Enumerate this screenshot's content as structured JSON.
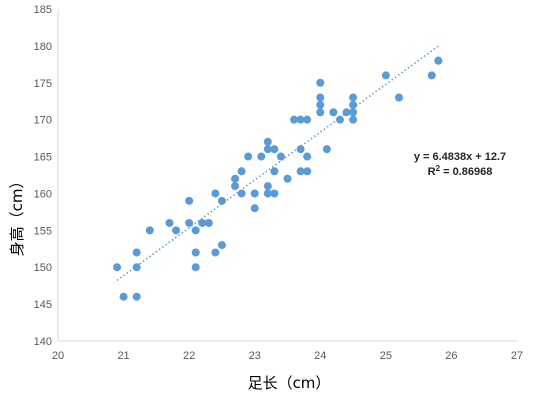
{
  "chart_data": {
    "type": "scatter",
    "title": "",
    "xlabel": "足长（cm）",
    "ylabel": "身高（cm）",
    "xlim": [
      20,
      27
    ],
    "ylim": [
      140,
      185
    ],
    "x_ticks": [
      "20",
      "21",
      "22",
      "23",
      "24",
      "25",
      "26",
      "27"
    ],
    "y_ticks": [
      "140",
      "145",
      "150",
      "155",
      "160",
      "165",
      "170",
      "175",
      "180",
      "185"
    ],
    "grid": false,
    "point_color": "#5B9BD5",
    "trendline": {
      "type": "linear",
      "slope": 6.4838,
      "intercept": 12.7,
      "x_range": [
        20.9,
        25.8
      ],
      "style": "dotted",
      "color": "#5B9BD5",
      "equation_label": "y = 6.4838x + 12.7",
      "r2_prefix": "R",
      "r2_exponent": "2",
      "r2_value": " = 0.86968"
    },
    "series": [
      {
        "points": [
          [
            20.9,
            150
          ],
          [
            21.0,
            146
          ],
          [
            21.2,
            146
          ],
          [
            21.2,
            150
          ],
          [
            21.2,
            152
          ],
          [
            21.4,
            155
          ],
          [
            21.7,
            156
          ],
          [
            21.8,
            155
          ],
          [
            22.0,
            159
          ],
          [
            22.0,
            156
          ],
          [
            22.1,
            155
          ],
          [
            22.1,
            152
          ],
          [
            22.1,
            150
          ],
          [
            22.2,
            156
          ],
          [
            22.3,
            156
          ],
          [
            22.4,
            160
          ],
          [
            22.4,
            152
          ],
          [
            22.5,
            159
          ],
          [
            22.5,
            153
          ],
          [
            22.7,
            162
          ],
          [
            22.7,
            161
          ],
          [
            22.8,
            160
          ],
          [
            22.8,
            163
          ],
          [
            22.9,
            165
          ],
          [
            23.0,
            160
          ],
          [
            23.0,
            158
          ],
          [
            23.1,
            165
          ],
          [
            23.2,
            167
          ],
          [
            23.2,
            166
          ],
          [
            23.2,
            161
          ],
          [
            23.2,
            160
          ],
          [
            23.3,
            166
          ],
          [
            23.3,
            163
          ],
          [
            23.3,
            160
          ],
          [
            23.4,
            165
          ],
          [
            23.5,
            162
          ],
          [
            23.6,
            170
          ],
          [
            23.7,
            170
          ],
          [
            23.7,
            166
          ],
          [
            23.7,
            163
          ],
          [
            23.8,
            170
          ],
          [
            23.8,
            165
          ],
          [
            23.8,
            163
          ],
          [
            24.0,
            175
          ],
          [
            24.0,
            173
          ],
          [
            24.0,
            172
          ],
          [
            24.0,
            171
          ],
          [
            24.1,
            166
          ],
          [
            24.2,
            171
          ],
          [
            24.3,
            170
          ],
          [
            24.4,
            171
          ],
          [
            24.5,
            173
          ],
          [
            24.5,
            172
          ],
          [
            24.5,
            171
          ],
          [
            24.5,
            170
          ],
          [
            25.0,
            176
          ],
          [
            25.2,
            173
          ],
          [
            25.7,
            176
          ],
          [
            25.8,
            178
          ],
          [
            25.8,
            178
          ]
        ]
      }
    ]
  }
}
